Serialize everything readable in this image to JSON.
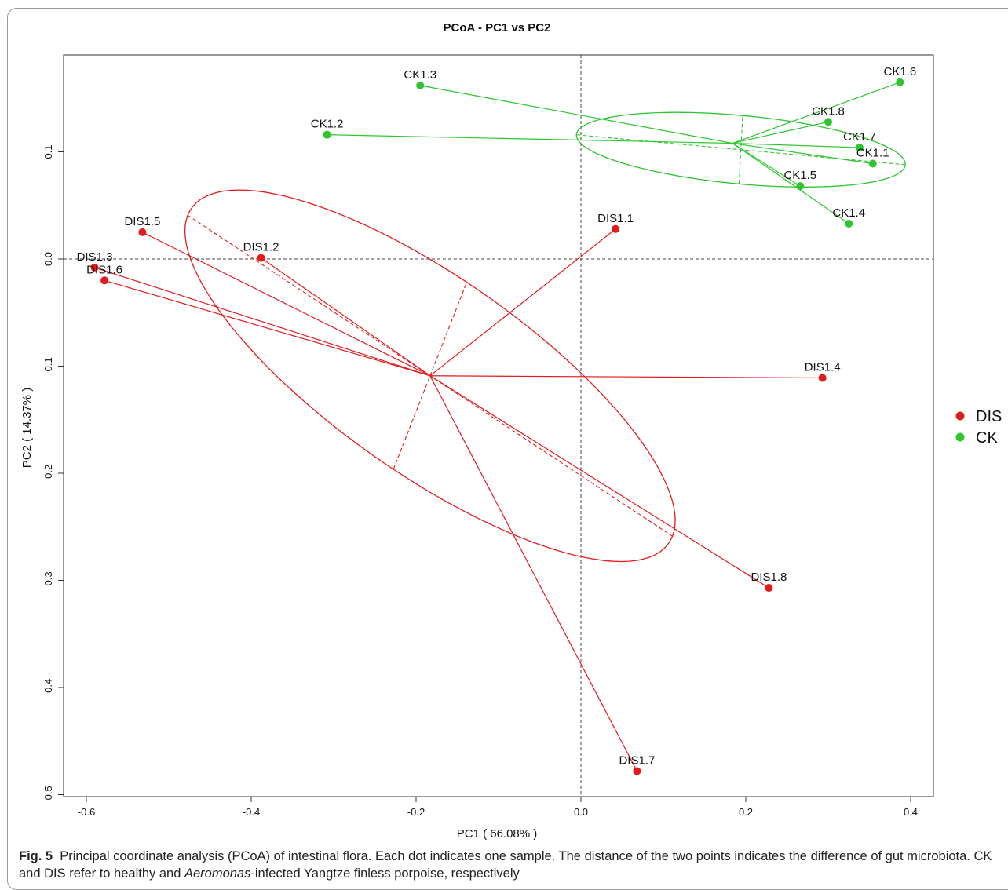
{
  "chart_data": {
    "type": "scatter",
    "title": "PCoA - PC1 vs PC2",
    "xlabel": "PC1 ( 66.08% )",
    "ylabel": "PC2 ( 14.37% )",
    "xlim": [
      -0.61,
      0.42
    ],
    "ylim": [
      -0.505,
      0.19
    ],
    "xticks": [
      -0.6,
      -0.4,
      -0.2,
      0.0,
      0.2,
      0.4
    ],
    "xtick_labels": [
      "-0.6",
      "-0.4",
      "-0.2",
      "0.0",
      "0.2",
      "0.4"
    ],
    "yticks": [
      0.1,
      0.0,
      -0.1,
      -0.2,
      -0.3,
      -0.4,
      -0.5
    ],
    "ytick_labels": [
      "0.1",
      "0.0",
      "-0.1",
      "-0.2",
      "-0.3",
      "-0.4",
      "-0.5"
    ],
    "reference_lines": {
      "x": 0.0,
      "y": 0.0
    },
    "legend_position": "right",
    "grid": false,
    "series": [
      {
        "name": "DIS",
        "color": "#e41a1c",
        "centroid": [
          -0.183,
          -0.109
        ],
        "ellipse": {
          "center": [
            -0.183,
            -0.109
          ],
          "semi_major": 0.33,
          "semi_minor": 0.098,
          "angle_deg": -27
        },
        "points": [
          {
            "label": "DIS1.1",
            "x": 0.042,
            "y": 0.028
          },
          {
            "label": "DIS1.2",
            "x": -0.388,
            "y": 0.001
          },
          {
            "label": "DIS1.3",
            "x": -0.59,
            "y": -0.008
          },
          {
            "label": "DIS1.4",
            "x": 0.293,
            "y": -0.111
          },
          {
            "label": "DIS1.5",
            "x": -0.532,
            "y": 0.025
          },
          {
            "label": "DIS1.6",
            "x": -0.578,
            "y": -0.02
          },
          {
            "label": "DIS1.7",
            "x": 0.068,
            "y": -0.478
          },
          {
            "label": "DIS1.8",
            "x": 0.228,
            "y": -0.307
          }
        ]
      },
      {
        "name": "CK",
        "color": "#2ec52e",
        "centroid": [
          0.184,
          0.108
        ],
        "ellipse": {
          "center": [
            0.194,
            0.102
          ],
          "semi_major": 0.2,
          "semi_minor": 0.032,
          "angle_deg": -4
        },
        "points": [
          {
            "label": "CK1.1",
            "x": 0.354,
            "y": 0.089
          },
          {
            "label": "CK1.2",
            "x": -0.308,
            "y": 0.116
          },
          {
            "label": "CK1.3",
            "x": -0.195,
            "y": 0.162
          },
          {
            "label": "CK1.4",
            "x": 0.325,
            "y": 0.033
          },
          {
            "label": "CK1.5",
            "x": 0.266,
            "y": 0.068
          },
          {
            "label": "CK1.6",
            "x": 0.387,
            "y": 0.165
          },
          {
            "label": "CK1.7",
            "x": 0.338,
            "y": 0.104
          },
          {
            "label": "CK1.8",
            "x": 0.3,
            "y": 0.128
          }
        ]
      }
    ]
  },
  "caption": {
    "fig_label": "Fig. 5",
    "text_1": "Principal coordinate analysis (PCoA) of intestinal flora. Each dot indicates one sample. The distance of the two points indicates the difference of gut microbiota. CK and DIS refer to healthy and ",
    "italic": "Aeromonas",
    "text_2": "-infected Yangtze finless porpoise, respectively"
  }
}
